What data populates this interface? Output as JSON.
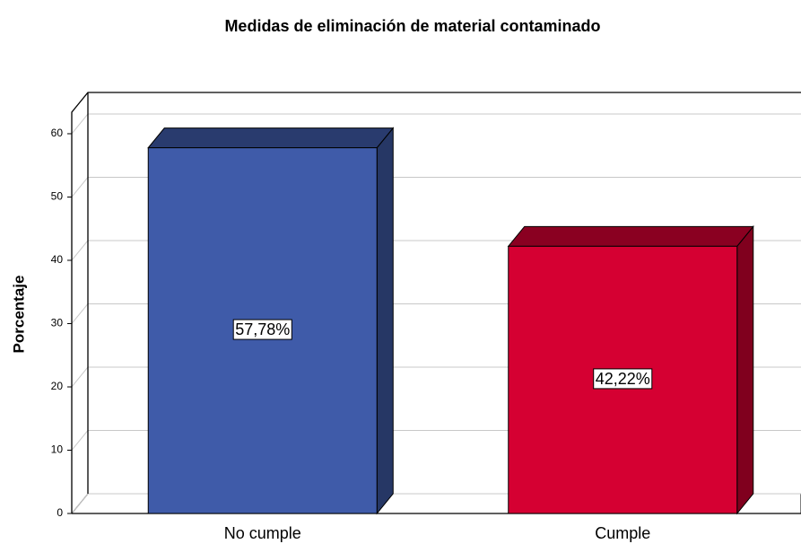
{
  "chart_data": {
    "type": "bar3d",
    "title": "Medidas de eliminación de material contaminado",
    "y_label": "Porcentaje",
    "categories": [
      "No cumple",
      "Cumple"
    ],
    "values": [
      57.78,
      42.22
    ],
    "value_labels": [
      "57,78%",
      "42,22%"
    ],
    "colors": [
      "#3f5ba9",
      "#d50032"
    ],
    "ylim": [
      0,
      63.4
    ],
    "yticks": [
      0,
      10,
      20,
      30,
      40,
      50,
      60
    ],
    "grid": true
  }
}
